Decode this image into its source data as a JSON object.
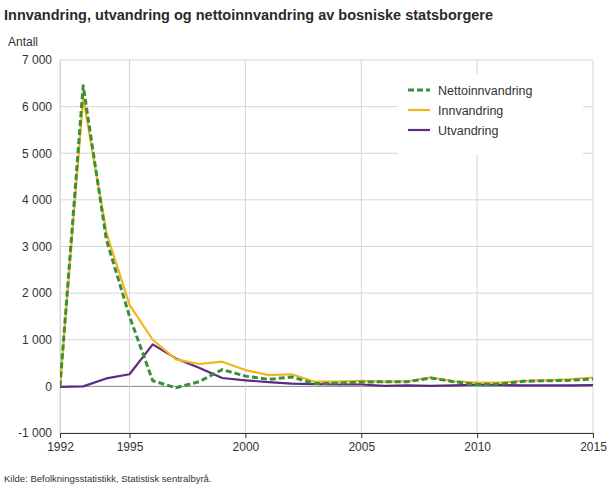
{
  "chart_data": {
    "type": "line",
    "title": "Innvandring, utvandring og nettoinnvandring av bosniske statsborgere",
    "y_label": "Antall",
    "source": "Kilde: Befolkningsstatistikk, Statistisk sentralbyrå.",
    "x": [
      1992,
      1993,
      1994,
      1995,
      1996,
      1997,
      1998,
      1999,
      2000,
      2001,
      2002,
      2003,
      2004,
      2005,
      2006,
      2007,
      2008,
      2009,
      2010,
      2011,
      2012,
      2013,
      2014,
      2015
    ],
    "series": [
      {
        "name": "Nettoinnvandring",
        "color": "#3a8f3c",
        "line_style": "dashed",
        "values": [
          0,
          6450,
          3150,
          1500,
          120,
          -30,
          100,
          360,
          220,
          150,
          200,
          60,
          70,
          90,
          100,
          100,
          180,
          100,
          40,
          50,
          110,
          120,
          130,
          160
        ]
      },
      {
        "name": "Innvandring",
        "color": "#f2b51c",
        "line_style": "solid",
        "values": [
          0,
          6200,
          3300,
          1750,
          1000,
          580,
          480,
          530,
          350,
          240,
          260,
          100,
          100,
          120,
          100,
          110,
          190,
          110,
          80,
          80,
          120,
          130,
          150,
          190
        ]
      },
      {
        "name": "Utvandring",
        "color": "#5c2b82",
        "line_style": "solid",
        "values": [
          -10,
          0,
          170,
          260,
          900,
          600,
          400,
          180,
          130,
          90,
          60,
          50,
          40,
          40,
          10,
          20,
          10,
          20,
          40,
          30,
          20,
          20,
          20,
          30
        ]
      }
    ],
    "xlim": [
      1992,
      2015
    ],
    "xticks": [
      1992,
      1995,
      2000,
      2005,
      2010,
      2015
    ],
    "ylim": [
      -1000,
      7000
    ],
    "yticks": [
      {
        "value": -1000,
        "label": "-1 000"
      },
      0,
      {
        "value": 1000,
        "label": "1 000"
      },
      {
        "value": 2000,
        "label": "2 000"
      },
      {
        "value": 3000,
        "label": "3 000"
      },
      {
        "value": 4000,
        "label": "4 000"
      },
      {
        "value": 5000,
        "label": "5 000"
      },
      {
        "value": 6000,
        "label": "6 000"
      },
      {
        "value": 7000,
        "label": "7 000"
      }
    ],
    "grid": true,
    "legend": "top-right"
  }
}
